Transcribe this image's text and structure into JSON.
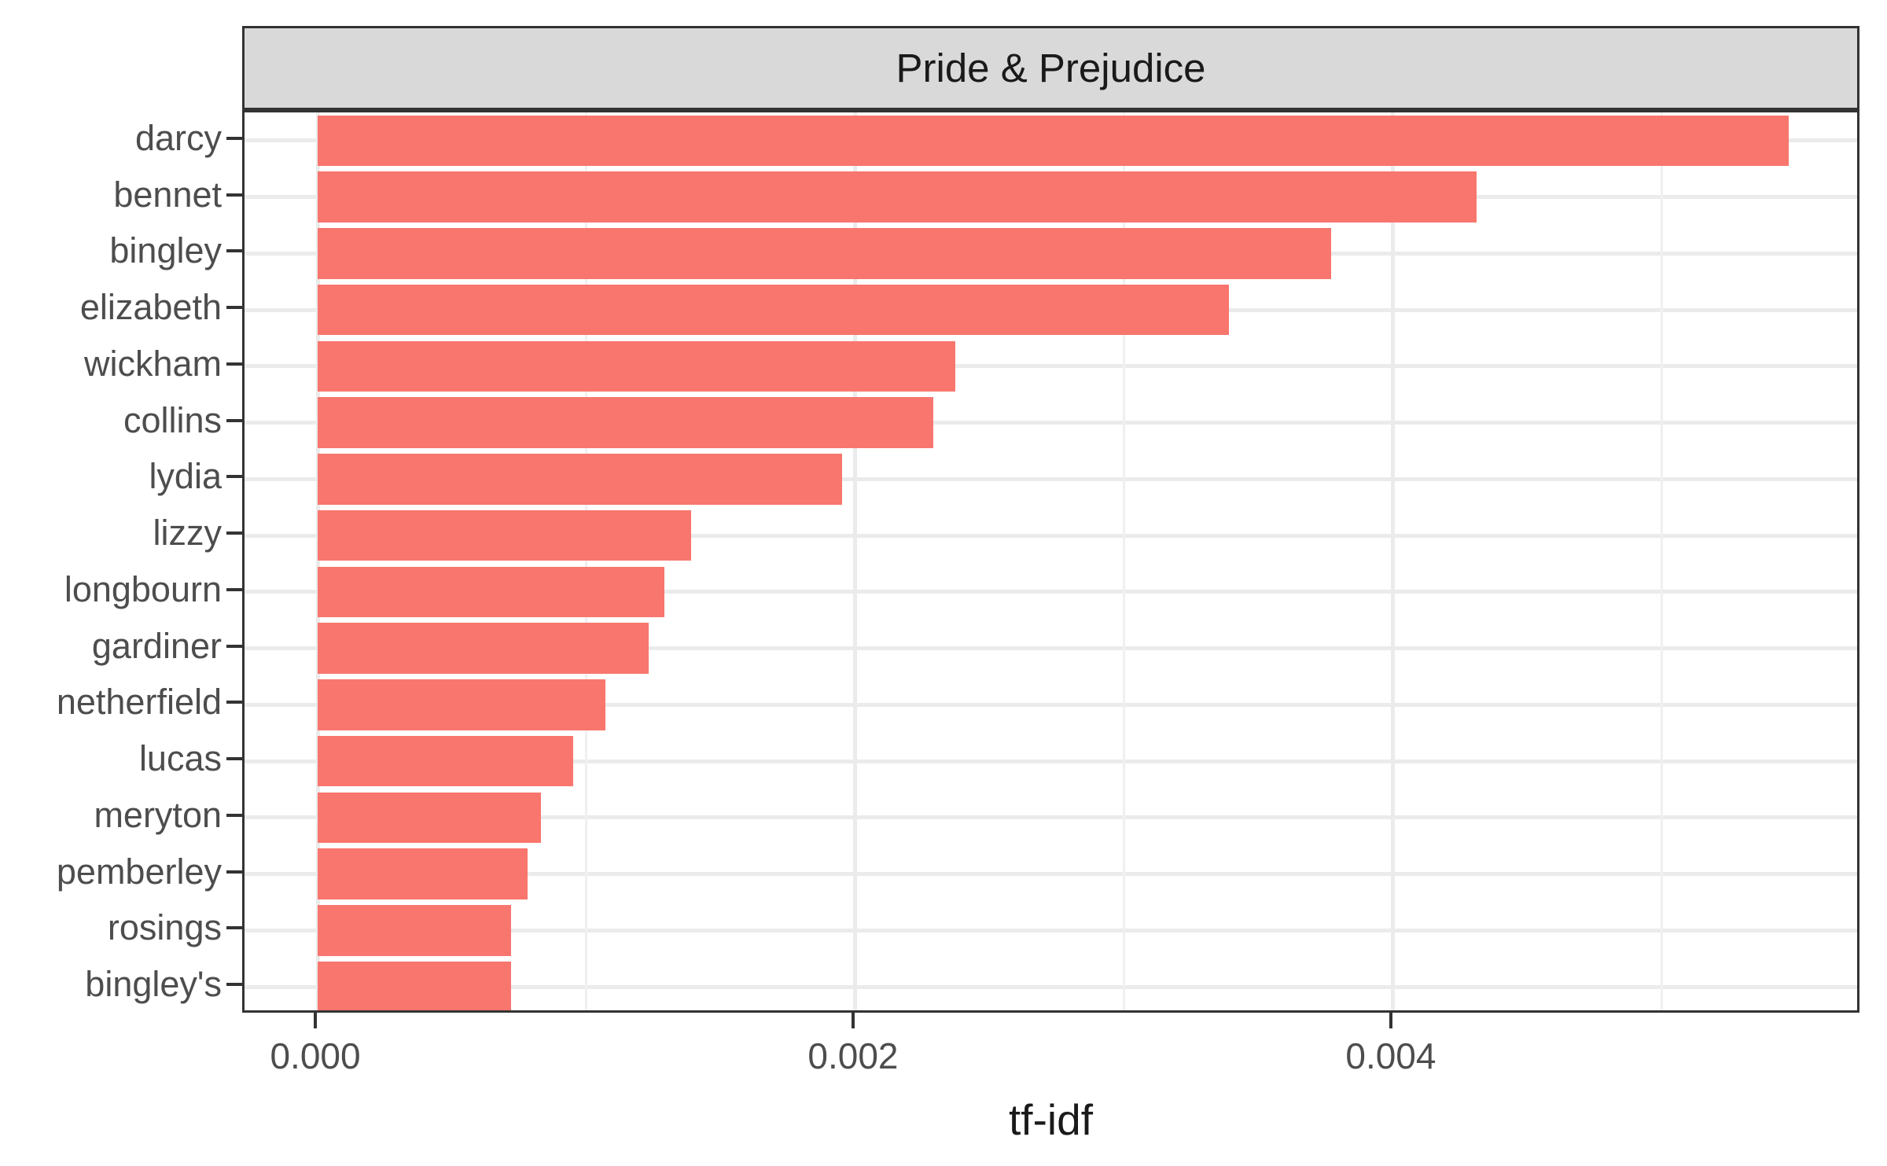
{
  "chart_data": {
    "type": "bar",
    "orientation": "horizontal",
    "title": "Pride & Prejudice",
    "xlabel": "tf-idf",
    "ylabel": "",
    "categories": [
      "darcy",
      "bennet",
      "bingley",
      "elizabeth",
      "wickham",
      "collins",
      "lydia",
      "lizzy",
      "longbourn",
      "gardiner",
      "netherfield",
      "lucas",
      "meryton",
      "pemberley",
      "rosings",
      "bingley's"
    ],
    "values": [
      0.00547,
      0.00431,
      0.00377,
      0.00339,
      0.00237,
      0.00229,
      0.00195,
      0.00139,
      0.00129,
      0.00123,
      0.00107,
      0.00095,
      0.00083,
      0.00078,
      0.00072,
      0.00072
    ],
    "x_ticks": [
      {
        "value": 0.0,
        "label": "0.000"
      },
      {
        "value": 0.002,
        "label": "0.002"
      },
      {
        "value": 0.004,
        "label": "0.004"
      }
    ],
    "x_minor_ticks": [
      0.001,
      0.003,
      0.005
    ],
    "xlim": [
      -0.000272,
      0.005743
    ],
    "grid": true,
    "legend": "none",
    "bar_width_fraction": 0.9
  },
  "style": {
    "bar_fill": "#F8766D",
    "strip_fill": "#D9D9D9",
    "strip_text": "#1A1A1A",
    "panel_border": "#333333",
    "grid_major": "#EBEBEB",
    "grid_minor": "#F0F0F0",
    "axis_text": "#4D4D4D",
    "axis_title": "#1A1A1A",
    "tick_color": "#333333",
    "background": "#FFFFFF"
  }
}
